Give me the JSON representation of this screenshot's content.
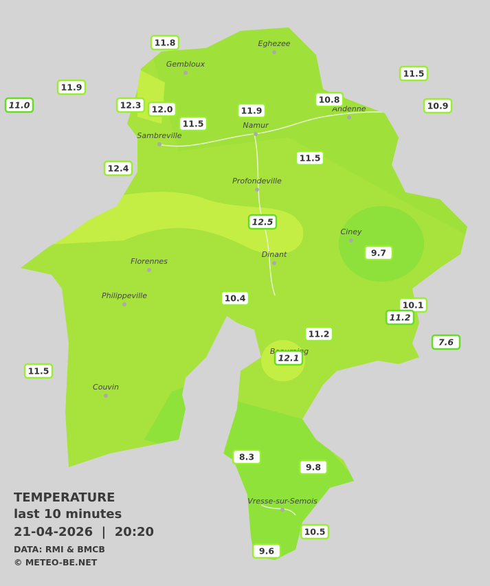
{
  "title": {
    "lines": [
      "TEMPERATURE",
      "last 10 minutes",
      "21-04-2026  |  20:20"
    ],
    "source": "DATA: RMI & BMCB",
    "copyright": "© METEO-BE.NET"
  },
  "towns": [
    "Eghezee",
    "Gembloux",
    "Andenne",
    "Namur",
    "Sambreville",
    "Profondeville",
    "Ciney",
    "Dinant",
    "Florennes",
    "Philippeville",
    "Beauraing",
    "Couvin",
    "Vresse-sur-Semois"
  ],
  "stations": [
    {
      "value": "11.8",
      "italic": false
    },
    {
      "value": "11.9",
      "italic": false
    },
    {
      "value": "11.0",
      "italic": true
    },
    {
      "value": "12.3",
      "italic": false
    },
    {
      "value": "12.0",
      "italic": false
    },
    {
      "value": "11.5",
      "italic": false
    },
    {
      "value": "11.9",
      "italic": false
    },
    {
      "value": "10.8",
      "italic": false
    },
    {
      "value": "11.5",
      "italic": false
    },
    {
      "value": "10.9",
      "italic": false
    },
    {
      "value": "12.4",
      "italic": false
    },
    {
      "value": "11.5",
      "italic": false
    },
    {
      "value": "12.5",
      "italic": true
    },
    {
      "value": "9.7",
      "italic": false
    },
    {
      "value": "10.4",
      "italic": false
    },
    {
      "value": "10.1",
      "italic": false
    },
    {
      "value": "11.2",
      "italic": true
    },
    {
      "value": "7.6",
      "italic": true
    },
    {
      "value": "11.2",
      "italic": false
    },
    {
      "value": "12.1",
      "italic": true
    },
    {
      "value": "11.5",
      "italic": false
    },
    {
      "value": "8.3",
      "italic": false
    },
    {
      "value": "9.8",
      "italic": false
    },
    {
      "value": "10.5",
      "italic": false
    },
    {
      "value": "9.6",
      "italic": false
    }
  ]
}
